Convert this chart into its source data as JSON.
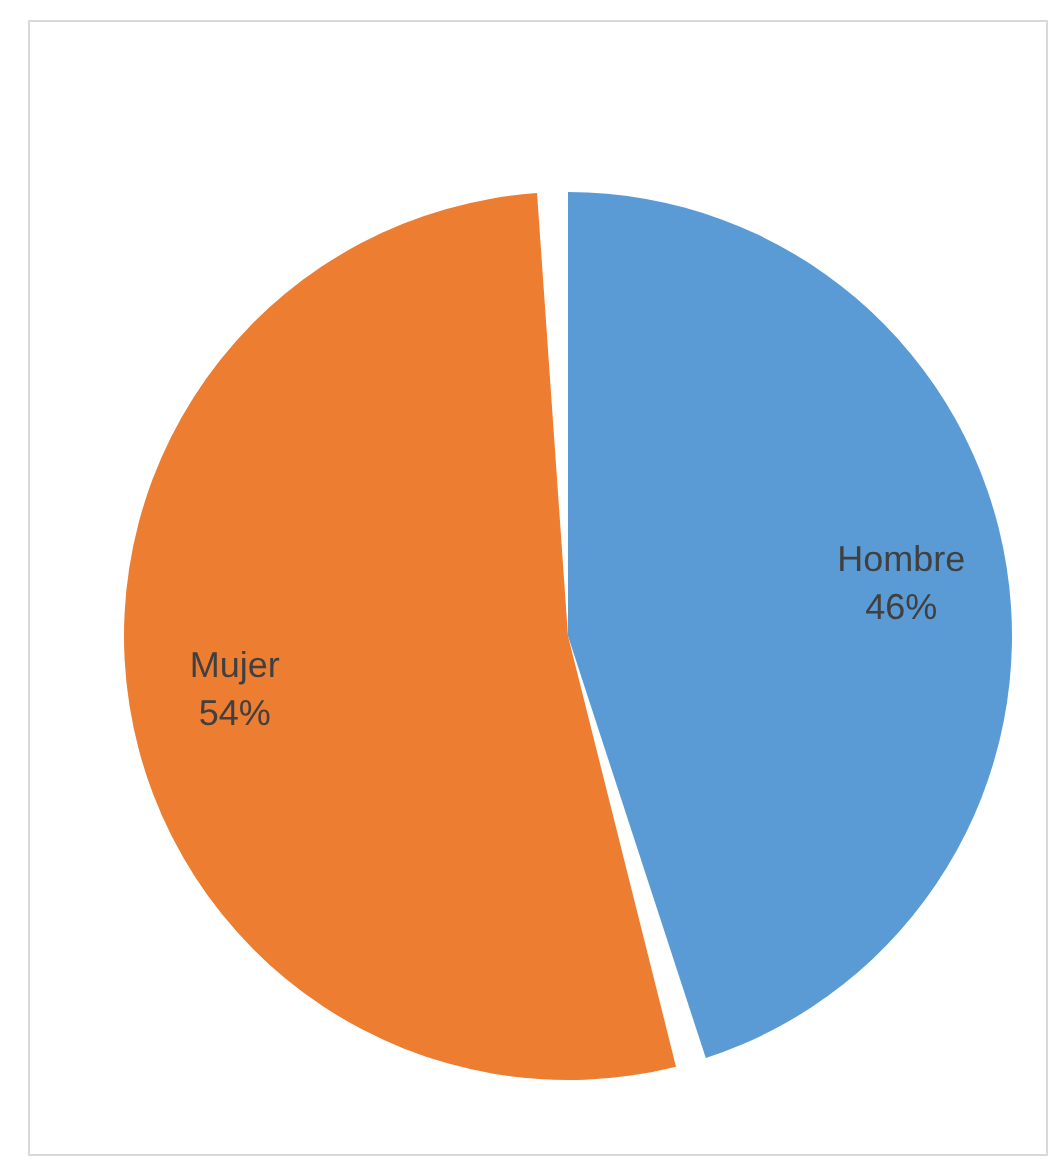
{
  "chart_data": {
    "type": "pie",
    "categories": [
      "Hombre",
      "Mujer"
    ],
    "values": [
      46,
      54
    ],
    "colors": [
      "#5b9bd5",
      "#ed7d31"
    ],
    "value_labels": [
      "46%",
      "54%"
    ],
    "legend": false
  }
}
